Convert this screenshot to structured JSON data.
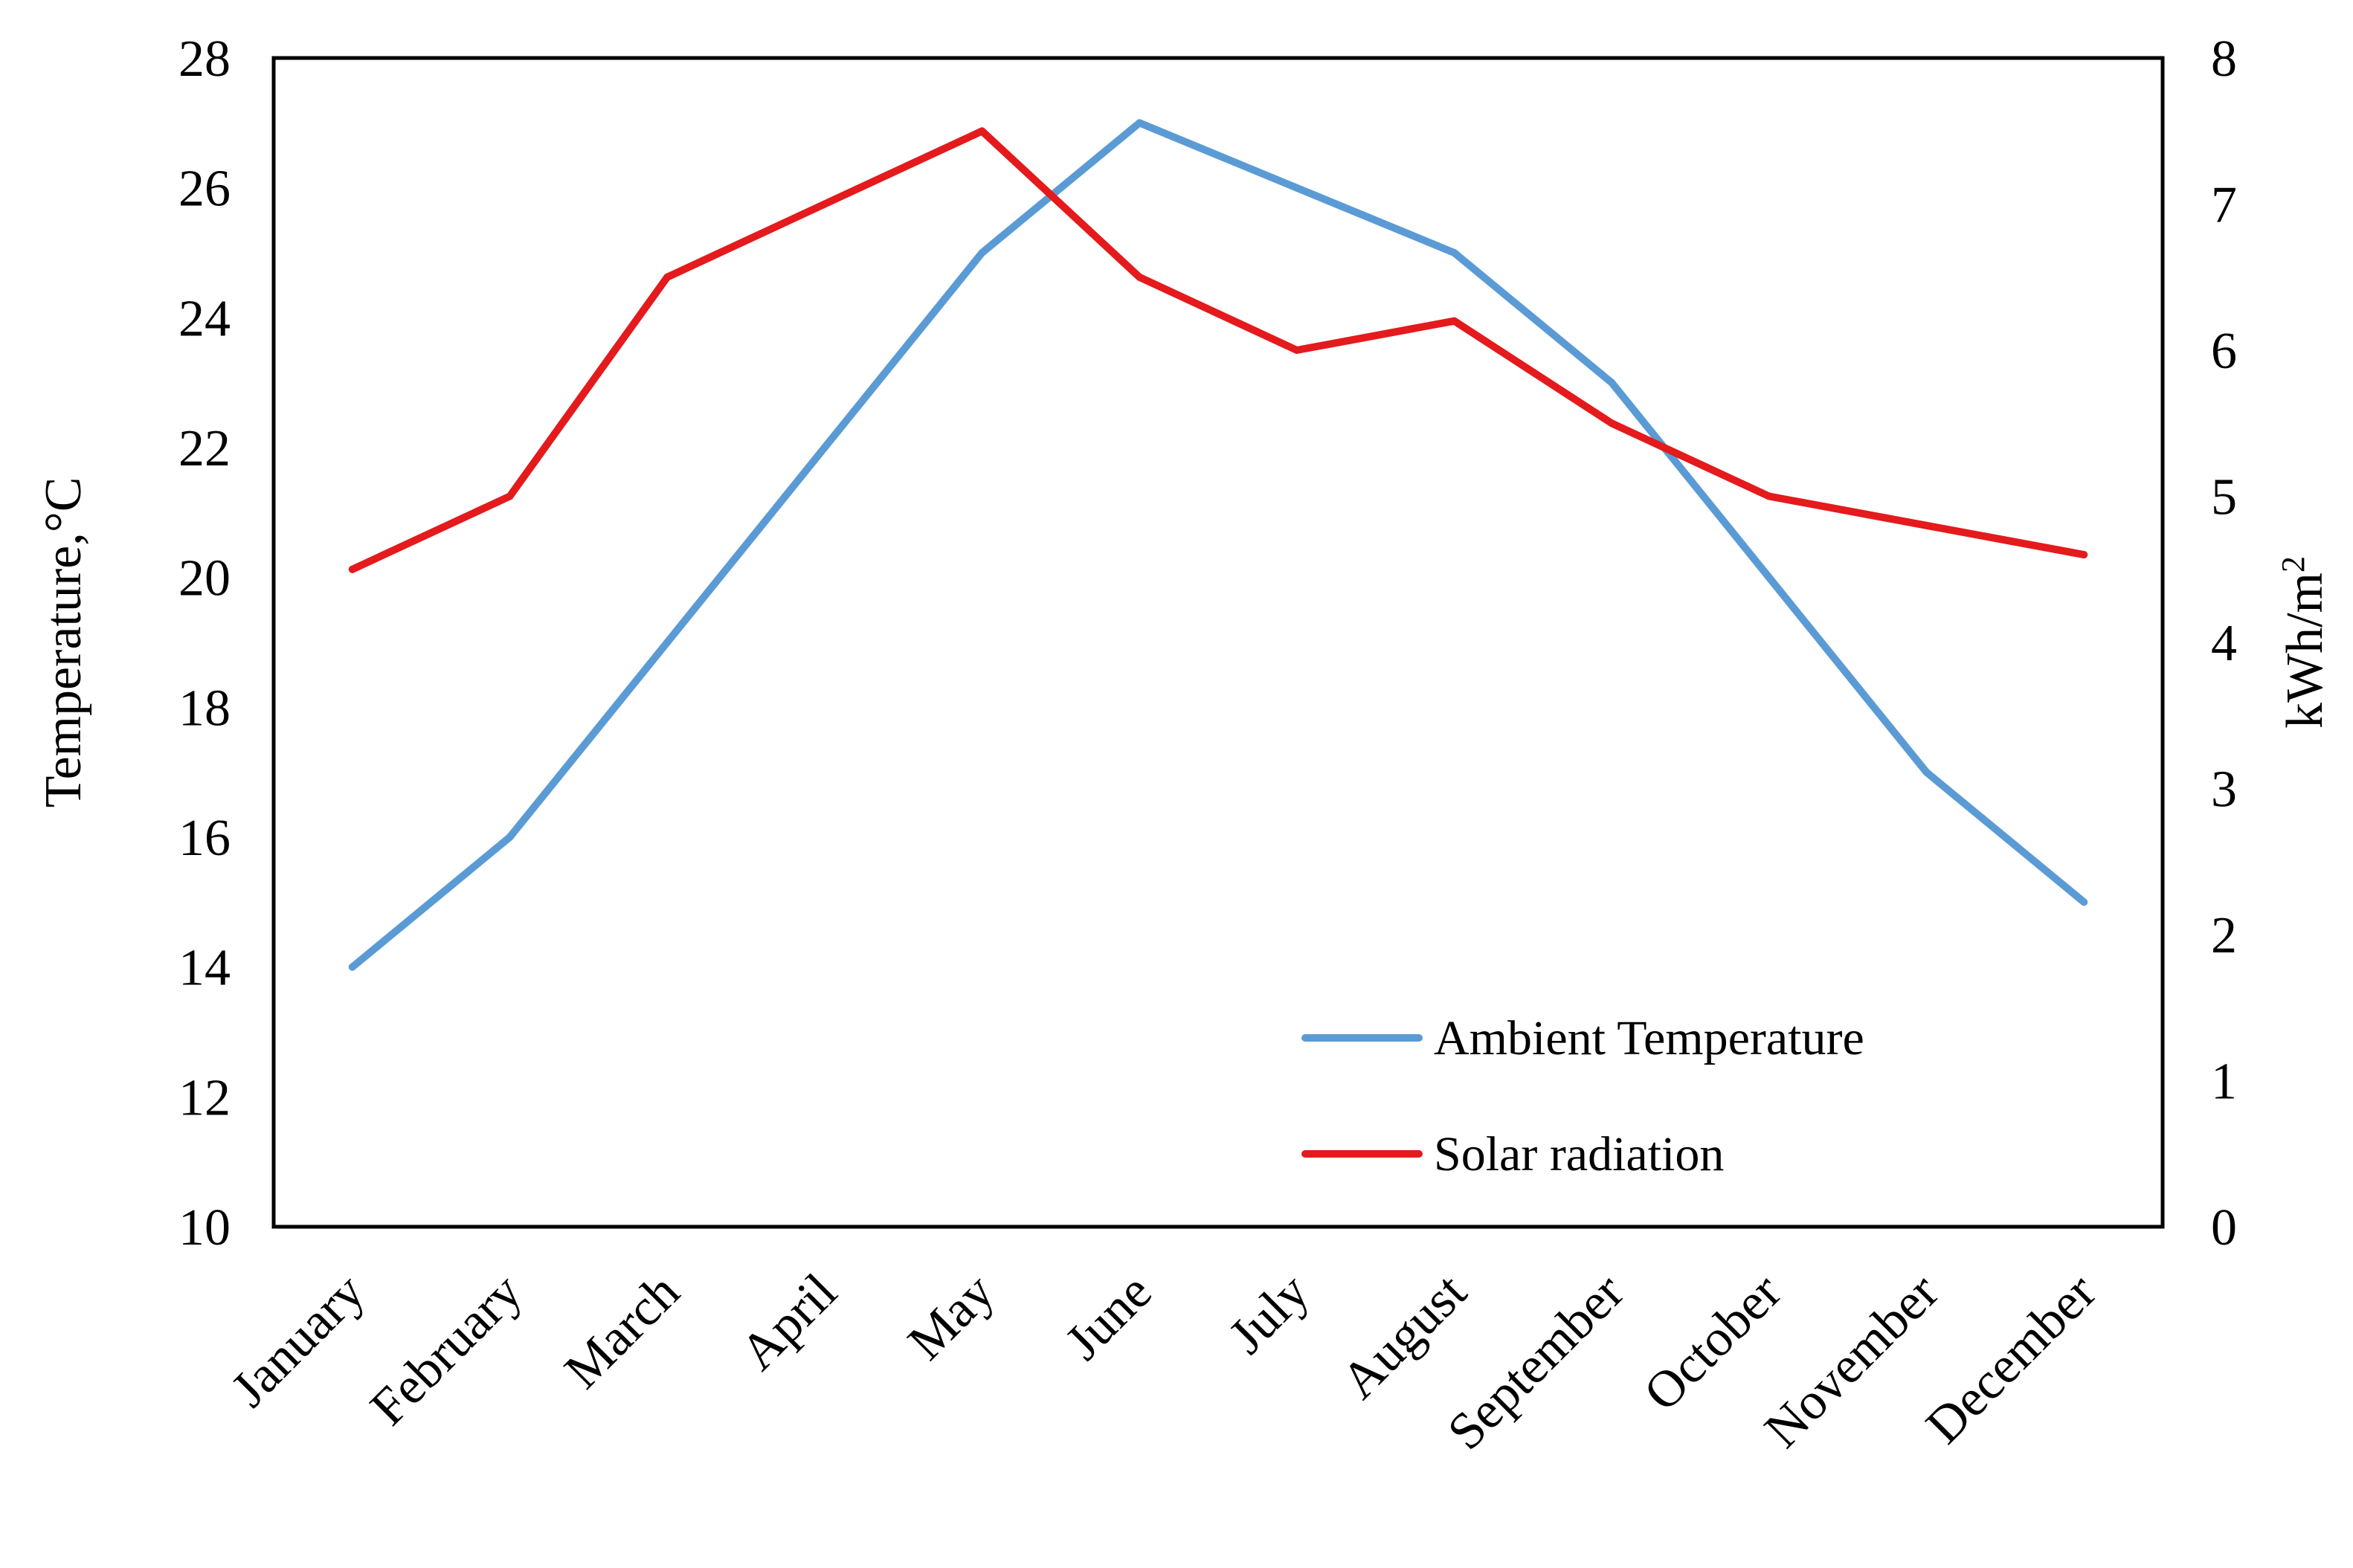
{
  "chart_data": {
    "type": "line",
    "title": "",
    "categories": [
      "January",
      "February",
      "March",
      "April",
      "May",
      "June",
      "July",
      "August",
      "September",
      "October",
      "November",
      "December"
    ],
    "series": [
      {
        "name": "Ambient Temperature",
        "axis": "left",
        "color": "#5b9bd5",
        "values": [
          14,
          16,
          19,
          22,
          25,
          27,
          26,
          25,
          23,
          20,
          17,
          15
        ]
      },
      {
        "name": "Solar radiation",
        "axis": "right",
        "color": "#e41a1c",
        "values": [
          4.5,
          5.0,
          6.5,
          7.0,
          7.5,
          6.5,
          6.0,
          6.2,
          5.5,
          5.0,
          4.8,
          4.6
        ]
      }
    ],
    "ylabel": "Temperature,°C",
    "y2label_base": "kWh/m",
    "y2label_sup": "2",
    "xlabel": "",
    "ylim": [
      10,
      28
    ],
    "yticks": [
      "10",
      "12",
      "14",
      "16",
      "18",
      "20",
      "22",
      "24",
      "26",
      "28"
    ],
    "y2lim": [
      0,
      8
    ],
    "y2ticks": [
      "0",
      "1",
      "2",
      "3",
      "4",
      "5",
      "6",
      "7",
      "8"
    ],
    "grid": false,
    "legend_position": "bottom-right"
  }
}
